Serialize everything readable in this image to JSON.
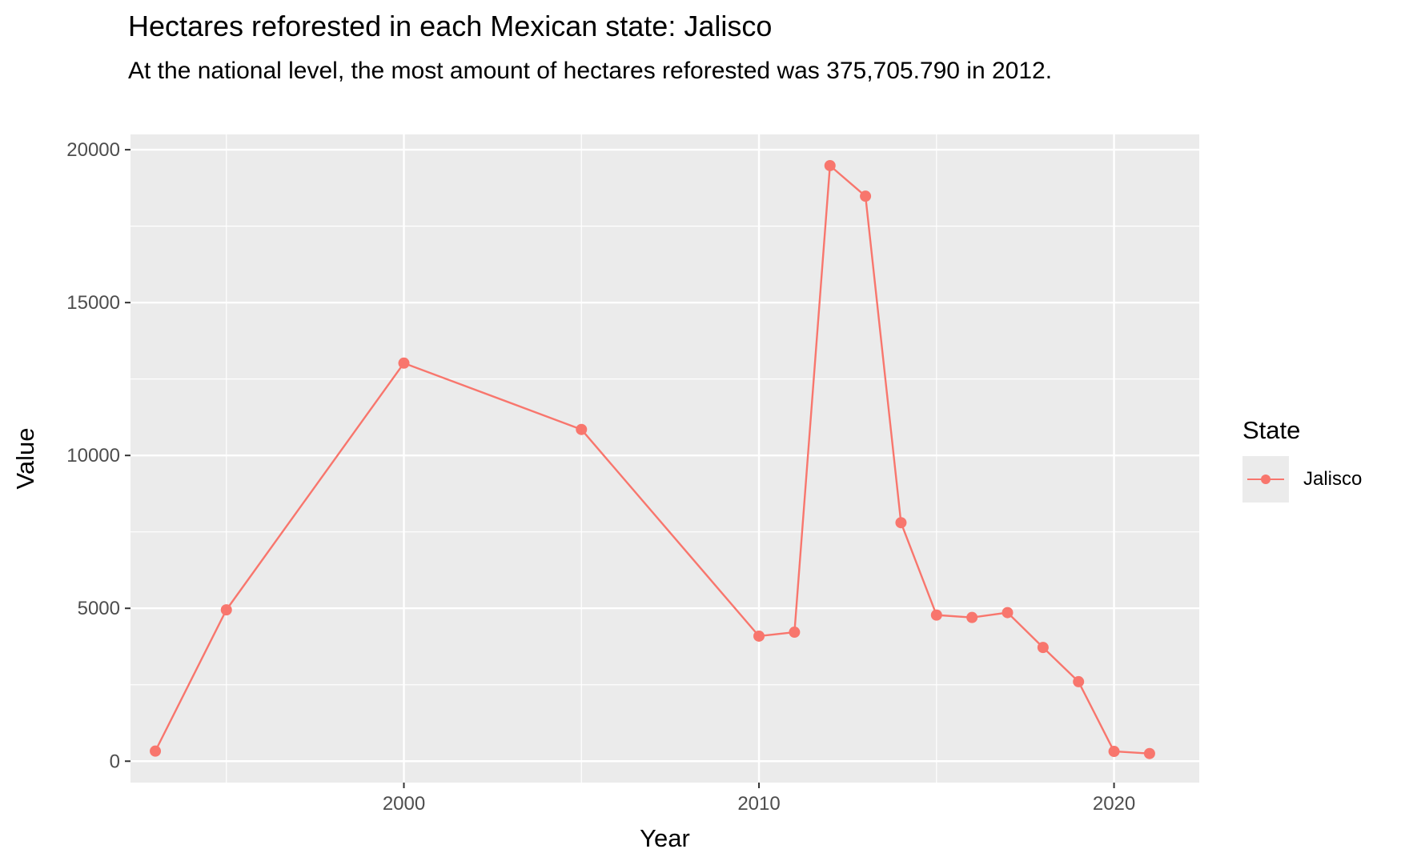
{
  "chart_data": {
    "type": "line",
    "title": "Hectares reforested in each Mexican state: Jalisco",
    "subtitle": "At the national level, the most amount of hectares reforested was 375,705.790 in 2012.",
    "xlabel": "Year",
    "ylabel": "Value",
    "x_ticks": [
      2000,
      2010,
      2020
    ],
    "y_ticks": [
      0,
      5000,
      10000,
      15000,
      20000
    ],
    "xlim": [
      1992.3,
      2022.4
    ],
    "ylim": [
      -700,
      20500
    ],
    "grid": true,
    "legend": {
      "title": "State",
      "position": "right"
    },
    "series": [
      {
        "name": "Jalisco",
        "color": "#F8766D",
        "x": [
          1993,
          1995,
          2000,
          2005,
          2010,
          2011,
          2012,
          2013,
          2014,
          2015,
          2016,
          2017,
          2018,
          2019,
          2020,
          2021
        ],
        "y": [
          330,
          4950,
          13020,
          10850,
          4090,
          4220,
          19480,
          18480,
          7800,
          4780,
          4700,
          4860,
          3720,
          2600,
          320,
          250
        ]
      }
    ]
  }
}
